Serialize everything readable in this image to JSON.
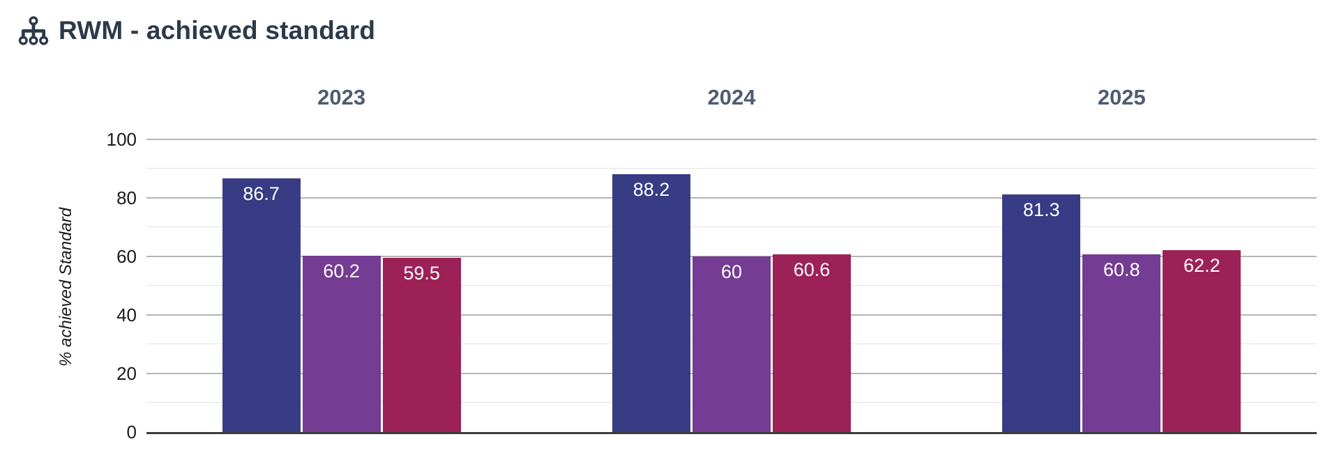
{
  "header": {
    "title": "RWM - achieved standard",
    "icon": "sitemap-icon"
  },
  "colors": {
    "title": "#2c3a49",
    "facet_title": "#4e5c70",
    "axis_text": "#1a1a1a",
    "grid_major": "#b4b4b4",
    "grid_minor": "#e2e2e2",
    "baseline": "#3c3c3c",
    "bar_label": "#ffffff"
  },
  "chart_data": {
    "type": "bar",
    "title": "RWM - achieved standard",
    "categories": [
      "2023",
      "2024",
      "2025"
    ],
    "series": [
      {
        "color": "#373c85",
        "values": [
          86.7,
          88.2,
          81.3
        ]
      },
      {
        "color": "#743c92",
        "values": [
          60.2,
          60,
          60.8
        ]
      },
      {
        "color": "#9c2157",
        "values": [
          59.5,
          60.6,
          62.2
        ]
      }
    ],
    "value_labels": [
      [
        "86.7",
        "60.2",
        "59.5"
      ],
      [
        "88.2",
        "60",
        "60.6"
      ],
      [
        "81.3",
        "60.8",
        "62.2"
      ]
    ],
    "xlabel": "",
    "ylabel": "% achieved Standard",
    "ylim": [
      0,
      100
    ],
    "yticks": [
      0,
      20,
      40,
      60,
      80,
      100
    ],
    "minor_grid_step": 10,
    "major_grid_step": 20,
    "grid": true,
    "legend": false,
    "bar_label_position": "inside-top"
  }
}
